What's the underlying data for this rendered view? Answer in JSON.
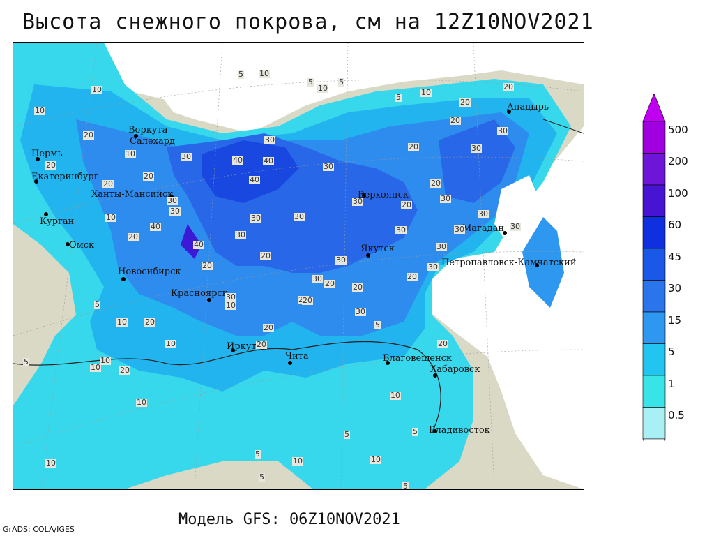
{
  "title": "Высота снежного покрова, см на 12Z10NOV2021",
  "footer": "Модель GFS: 06Z10NOV2021",
  "credit": "GrADS: COLA/IGES",
  "legend": {
    "levels": [
      "500",
      "200",
      "100",
      "60",
      "45",
      "30",
      "15",
      "5",
      "1",
      "0.5"
    ],
    "colors": [
      "#a000e0",
      "#6e16d8",
      "#4814d4",
      "#1030e0",
      "#1a58e8",
      "#2a74ec",
      "#2e98f0",
      "#22c4f0",
      "#38e4e8",
      "#a8f0f4"
    ]
  },
  "cities": [
    {
      "name": "Воркута",
      "dot": true
    },
    {
      "name": "Салехард",
      "dot": true
    },
    {
      "name": "Пермь",
      "dot": true
    },
    {
      "name": "Екатеринбург",
      "dot": true
    },
    {
      "name": "Ханты-Мансийск",
      "dot": true
    },
    {
      "name": "Курган",
      "dot": true
    },
    {
      "name": "Омск",
      "dot": true
    },
    {
      "name": "Новосибирск",
      "dot": true
    },
    {
      "name": "Красноярск",
      "dot": true
    },
    {
      "name": "Иркутск",
      "dot": true
    },
    {
      "name": "Чита",
      "dot": true
    },
    {
      "name": "Верхоянск",
      "dot": true
    },
    {
      "name": "Якутск",
      "dot": true
    },
    {
      "name": "Магадан",
      "dot": true
    },
    {
      "name": "Анадырь",
      "dot": true
    },
    {
      "name": "Петропавловск-Камчатский",
      "dot": true
    },
    {
      "name": "Благовещенск",
      "dot": true
    },
    {
      "name": "Хабаровск",
      "dot": true
    },
    {
      "name": "Владивосток",
      "dot": true
    }
  ],
  "contour_labels": [
    "5",
    "10",
    "5",
    "10",
    "5",
    "10",
    "10",
    "5",
    "10",
    "20",
    "20",
    "10",
    "20",
    "30",
    "40",
    "40",
    "40",
    "30",
    "30",
    "20",
    "20",
    "30",
    "20",
    "20",
    "30",
    "20",
    "30",
    "30",
    "30",
    "30",
    "40",
    "30",
    "40",
    "30",
    "20",
    "30",
    "30",
    "20",
    "20",
    "20",
    "20",
    "30",
    "30",
    "20",
    "30",
    "20",
    "30",
    "20",
    "30",
    "20",
    "10",
    "20",
    "10",
    "10",
    "20",
    "10",
    "20",
    "5",
    "10",
    "5",
    "10",
    "5",
    "10",
    "10",
    "5",
    "5",
    "5",
    "10",
    "5",
    "10",
    "5",
    "10",
    "5",
    "20",
    "20",
    "30",
    "30",
    "30",
    "30",
    "20"
  ]
}
